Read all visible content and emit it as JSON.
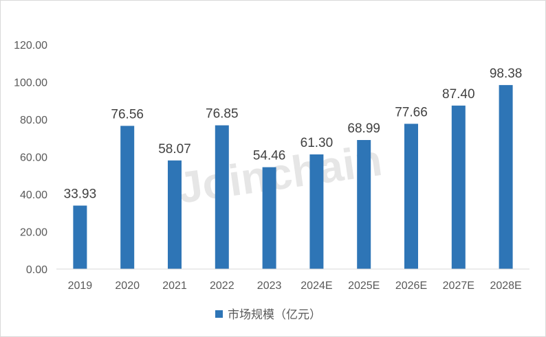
{
  "chart_data": {
    "type": "bar",
    "categories": [
      "2019",
      "2020",
      "2021",
      "2022",
      "2023",
      "2024E",
      "2025E",
      "2026E",
      "2027E",
      "2028E"
    ],
    "series": [
      {
        "name": "市场规模（亿元）",
        "values": [
          33.93,
          76.56,
          58.07,
          76.85,
          54.46,
          61.3,
          68.99,
          77.66,
          87.4,
          98.38
        ],
        "data_labels": [
          "33.93",
          "76.56",
          "58.07",
          "76.85",
          "54.46",
          "61.30",
          "68.99",
          "77.66",
          "87.40",
          "98.38"
        ],
        "color": "#2e75b6"
      }
    ],
    "y_ticks": [
      "0.00",
      "20.00",
      "40.00",
      "60.00",
      "80.00",
      "100.00",
      "120.00"
    ],
    "ylim": [
      0,
      120
    ],
    "grid": false,
    "legend_position": "bottom",
    "watermark": "Joinchain"
  }
}
